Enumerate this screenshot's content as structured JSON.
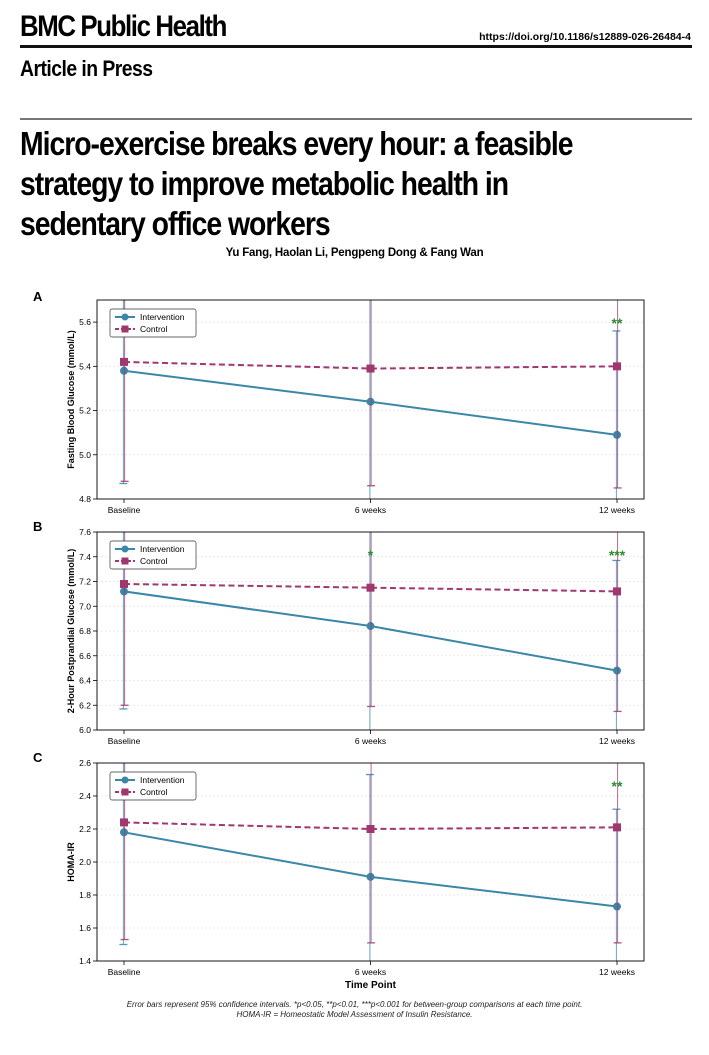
{
  "header": {
    "journal": "BMC Public Health",
    "doi": "https://doi.org/10.1186/s12889-026-26484-4",
    "status": "Article in Press"
  },
  "article": {
    "title_lines": [
      "Micro-exercise breaks every hour: a feasible",
      "strategy to improve metabolic health in",
      "sedentary office workers"
    ],
    "authors": "Yu Fang, Haolan Li, Pengpeng Dong & Fang Wan"
  },
  "figure": {
    "caption_lines": [
      "Error bars represent 95% confidence intervals. *p<0.05, **p<0.01, ***p<0.001 for between-group comparisons at each time point.",
      "HOMA-IR = Homeostatic Model Assessment of Insulin Resistance."
    ],
    "x_axis_title": "Time Point",
    "colors": {
      "intervention": "#3a87a8",
      "control": "#a0386f",
      "significance": "#2e8b2e"
    }
  },
  "chart_data": [
    {
      "panel": "A",
      "type": "line",
      "ylabel": "Fasting Blood Glucose (mmol/L)",
      "categories": [
        "Baseline",
        "6 weeks",
        "12 weeks"
      ],
      "ylim": [
        4.8,
        5.7
      ],
      "yticks": [
        "4.8",
        "5.0",
        "5.2",
        "5.4",
        "5.6"
      ],
      "legend_location": "upper-left",
      "series": [
        {
          "name": "Intervention",
          "values": [
            5.38,
            5.24,
            5.09
          ],
          "ci_lower": [
            4.87,
            4.6,
            4.6
          ],
          "ci_upper": [
            5.9,
            5.9,
            5.56
          ]
        },
        {
          "name": "Control",
          "values": [
            5.42,
            5.39,
            5.4
          ],
          "ci_lower": [
            4.88,
            4.86,
            4.85
          ],
          "ci_upper": [
            5.9,
            5.9,
            5.9
          ]
        }
      ],
      "significance": [
        "",
        "",
        "**"
      ],
      "grid": true
    },
    {
      "panel": "B",
      "type": "line",
      "ylabel": "2-Hour Postprandial Glucose (mmol/L)",
      "categories": [
        "Baseline",
        "6 weeks",
        "12 weeks"
      ],
      "ylim": [
        6.0,
        7.6
      ],
      "yticks": [
        "6.0",
        "6.2",
        "6.4",
        "6.6",
        "6.8",
        "7.0",
        "7.2",
        "7.4",
        "7.6"
      ],
      "legend_location": "upper-left",
      "series": [
        {
          "name": "Intervention",
          "values": [
            7.12,
            6.84,
            6.48
          ],
          "ci_lower": [
            6.17,
            5.9,
            5.9
          ],
          "ci_upper": [
            7.7,
            7.7,
            7.37
          ]
        },
        {
          "name": "Control",
          "values": [
            7.18,
            7.15,
            7.12
          ],
          "ci_lower": [
            6.2,
            6.19,
            6.15
          ],
          "ci_upper": [
            7.7,
            7.7,
            7.7
          ]
        }
      ],
      "significance": [
        "",
        "*",
        "***"
      ],
      "grid": true
    },
    {
      "panel": "C",
      "type": "line",
      "ylabel": "HOMA-IR",
      "xlabel": "Time Point",
      "categories": [
        "Baseline",
        "6 weeks",
        "12 weeks"
      ],
      "ylim": [
        1.4,
        2.6
      ],
      "yticks": [
        "1.4",
        "1.6",
        "1.8",
        "2.0",
        "2.2",
        "2.4",
        "2.6"
      ],
      "legend_location": "upper-left",
      "series": [
        {
          "name": "Intervention",
          "values": [
            2.18,
            1.91,
            1.73
          ],
          "ci_lower": [
            1.5,
            1.3,
            1.3
          ],
          "ci_upper": [
            2.7,
            2.53,
            2.32
          ]
        },
        {
          "name": "Control",
          "values": [
            2.24,
            2.2,
            2.21
          ],
          "ci_lower": [
            1.53,
            1.51,
            1.51
          ],
          "ci_upper": [
            2.7,
            2.7,
            2.7
          ]
        }
      ],
      "significance": [
        "",
        "",
        "**"
      ],
      "grid": true
    }
  ]
}
